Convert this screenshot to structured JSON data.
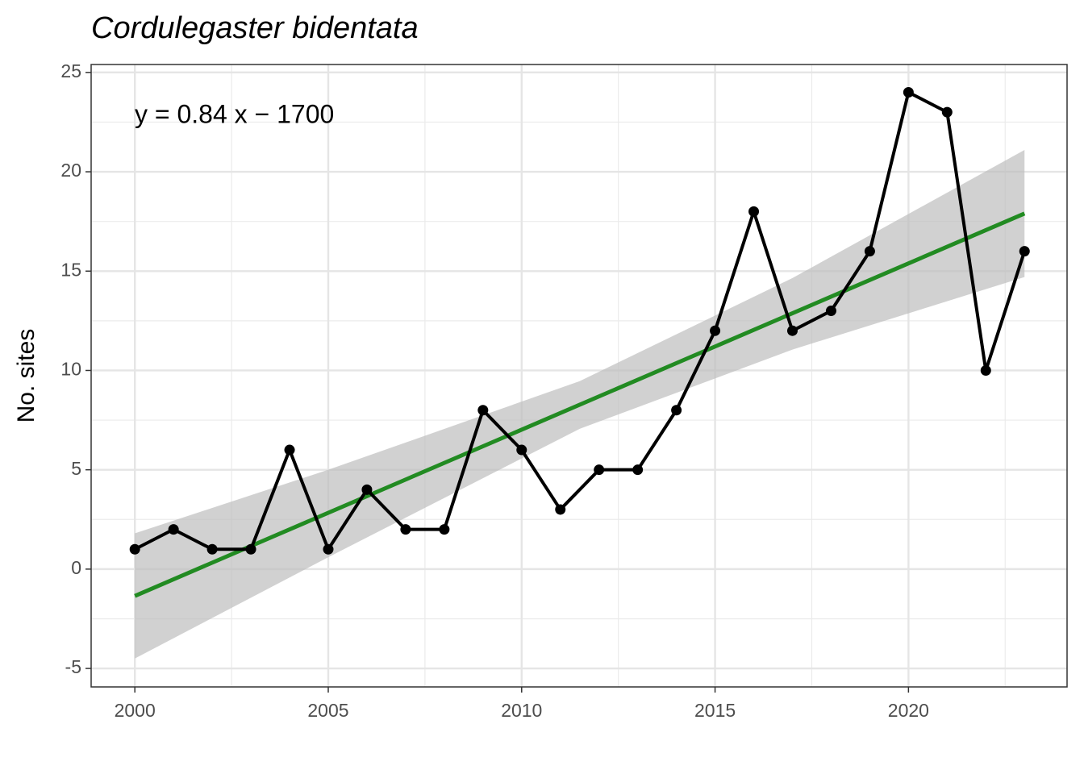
{
  "chart_data": {
    "type": "line",
    "title": "Cordulegaster bidentata",
    "y_label": "No. sites",
    "annotation": "y = 0.84 x − 1700",
    "x": [
      2000,
      2001,
      2002,
      2003,
      2004,
      2005,
      2006,
      2007,
      2008,
      2009,
      2010,
      2011,
      2012,
      2013,
      2014,
      2015,
      2016,
      2017,
      2018,
      2019,
      2020,
      2021,
      2022,
      2023
    ],
    "series": [
      {
        "color": "#000000",
        "values": [
          1,
          2,
          1,
          1,
          6,
          1,
          4,
          2,
          2,
          8,
          6,
          3,
          5,
          5,
          8,
          12,
          18,
          12,
          13,
          16,
          24,
          23,
          10,
          16
        ]
      }
    ],
    "fit": {
      "color": "#228b22",
      "x": [
        2000,
        2023
      ],
      "values": [
        -1.35,
        17.9
      ]
    },
    "band": {
      "color": "#bebebe",
      "x": [
        2000,
        2005,
        2011.5,
        2017,
        2023
      ],
      "lower": [
        -4.5,
        0.6,
        7.06,
        11.05,
        14.7
      ],
      "upper": [
        1.8,
        5.0,
        9.46,
        14.65,
        21.1
      ]
    },
    "xlim": [
      1998.87,
      2024.1
    ],
    "ylim": [
      -5.93,
      25.4
    ],
    "xticks": [
      2000,
      2005,
      2010,
      2015,
      2020
    ],
    "yticks": [
      -5,
      0,
      5,
      10,
      15,
      20,
      25
    ],
    "grid": true
  }
}
